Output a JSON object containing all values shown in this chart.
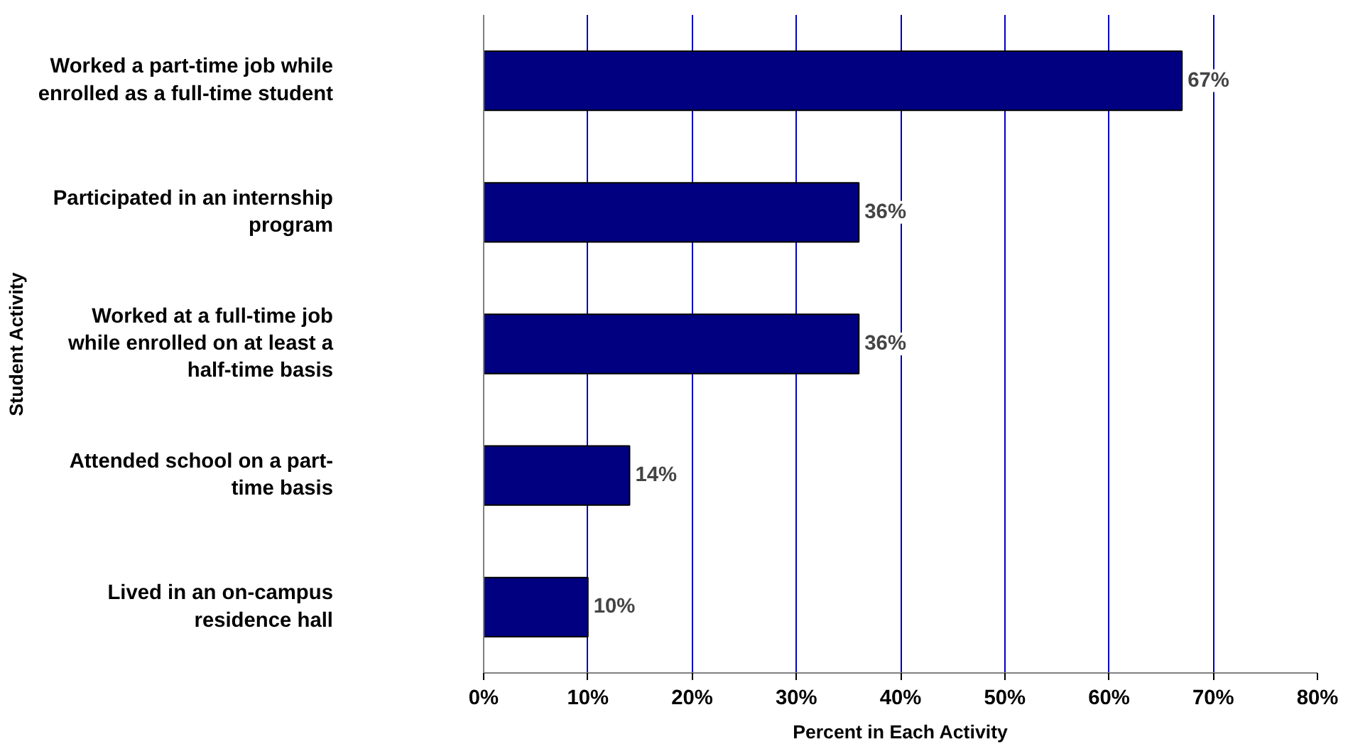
{
  "chart_data": {
    "type": "bar",
    "orientation": "horizontal",
    "categories": [
      "Worked a part-time job while\nenrolled as a full-time student",
      "Participated in an internship\nprogram",
      "Worked at a full-time job\nwhile enrolled on at least a\nhalf-time basis",
      "Attended school on a part-\ntime basis",
      "Lived in an on-campus\nresidence hall"
    ],
    "values": [
      67,
      36,
      36,
      14,
      10
    ],
    "value_labels": [
      "67%",
      "36%",
      "36%",
      "14%",
      "10%"
    ],
    "color": "#000080",
    "xlim": [
      0,
      80
    ],
    "xticks": [
      {
        "value": 0,
        "label": "0%"
      },
      {
        "value": 10,
        "label": "10%"
      },
      {
        "value": 20,
        "label": "20%"
      },
      {
        "value": 30,
        "label": "30%"
      },
      {
        "value": 40,
        "label": "40%"
      },
      {
        "value": 50,
        "label": "50%"
      },
      {
        "value": 60,
        "label": "60%"
      },
      {
        "value": 70,
        "label": "70%"
      },
      {
        "value": 80,
        "label": "80%"
      }
    ],
    "xlabel": "Percent in Each Activity",
    "ylabel": "Student Activity",
    "grid": "x"
  }
}
